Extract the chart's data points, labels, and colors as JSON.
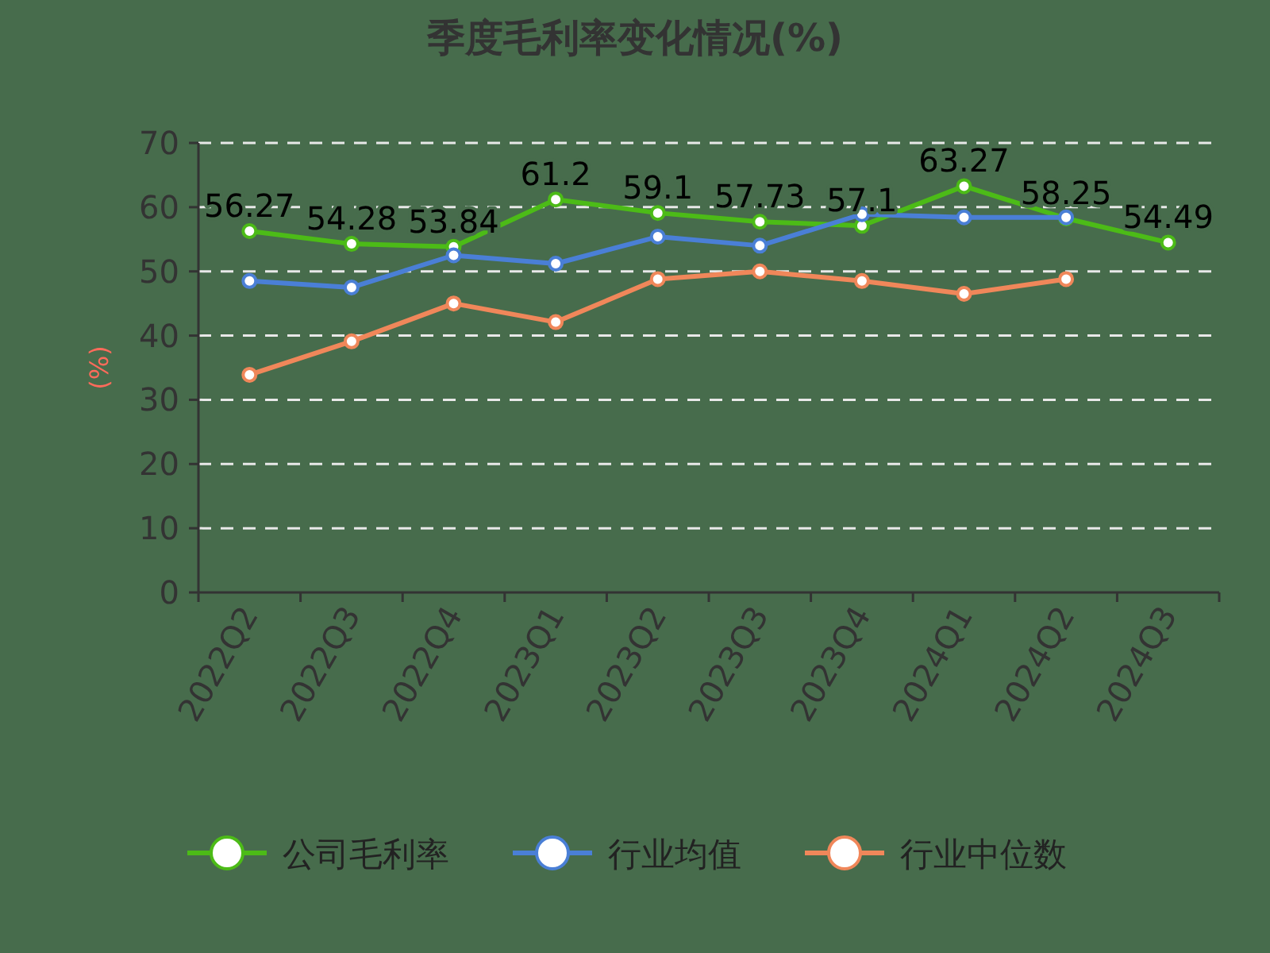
{
  "chart_data": {
    "type": "line",
    "title": "季度毛利率变化情况(%)",
    "ylabel": "(%)",
    "categories": [
      "2022Q2",
      "2022Q3",
      "2022Q4",
      "2023Q1",
      "2023Q2",
      "2023Q3",
      "2023Q4",
      "2024Q1",
      "2024Q2",
      "2024Q3"
    ],
    "series": [
      {
        "name": "公司毛利率",
        "color": "#4cbb17",
        "values": [
          56.27,
          54.28,
          53.84,
          61.2,
          59.1,
          57.73,
          57.1,
          63.27,
          58.25,
          54.49
        ],
        "value_labels": [
          "56.27",
          "54.28",
          "53.84",
          "61.2",
          "59.1",
          "57.73",
          "57.1",
          "63.27",
          "58.25",
          "54.49"
        ]
      },
      {
        "name": "行业均值",
        "color": "#4a7fd6",
        "values": [
          48.5,
          47.5,
          52.5,
          51.2,
          55.4,
          54,
          58.9,
          58.4,
          58.4,
          null
        ]
      },
      {
        "name": "行业中位数",
        "color": "#f0875a",
        "values": [
          33.9,
          39.1,
          45,
          42.1,
          48.8,
          50,
          48.5,
          46.5,
          48.8,
          null
        ]
      }
    ],
    "ylim": [
      0,
      70
    ],
    "yticks": [
      0,
      10,
      20,
      30,
      40,
      50,
      60,
      70
    ],
    "grid": "y",
    "legend": "bottom",
    "marker": "circle",
    "line_style": "solid"
  }
}
